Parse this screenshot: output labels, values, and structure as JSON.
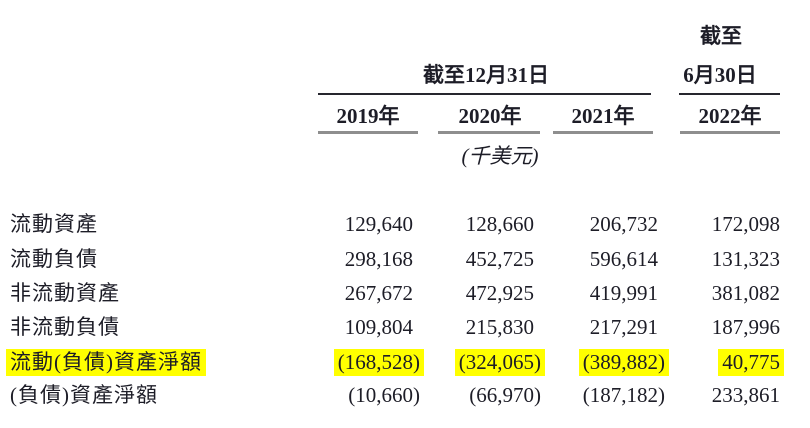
{
  "table": {
    "header": {
      "annual_period": "截至12月31日",
      "interim_period_line1": "截至",
      "interim_period_line2": "6月30日",
      "years": [
        "2019年",
        "2020年",
        "2021年",
        "2022年"
      ],
      "unit": "(千美元)"
    },
    "rows": [
      {
        "label": "流動資產",
        "values": [
          "129,640",
          "128,660",
          "206,732",
          "172,098"
        ],
        "highlight": false
      },
      {
        "label": "流動負債",
        "values": [
          "298,168",
          "452,725",
          "596,614",
          "131,323"
        ],
        "highlight": false
      },
      {
        "label": "非流動資產",
        "values": [
          "267,672",
          "472,925",
          "419,991",
          "381,082"
        ],
        "highlight": false
      },
      {
        "label": "非流動負債",
        "values": [
          "109,804",
          "215,830",
          "217,291",
          "187,996"
        ],
        "highlight": false
      },
      {
        "label": "流動(負債)資產淨額",
        "values": [
          "(168,528)",
          "(324,065)",
          "(389,882)",
          "40,775"
        ],
        "highlight": true
      },
      {
        "label": "(負債)資產淨額",
        "values": [
          "(10,660)",
          "(66,970)",
          "(187,182)",
          "233,861"
        ],
        "highlight": false
      }
    ],
    "colors": {
      "highlight": "#ffff00",
      "text": "#1d1d27",
      "rule_dark": "#26262e",
      "rule_gray": "#8e8e8e"
    }
  }
}
